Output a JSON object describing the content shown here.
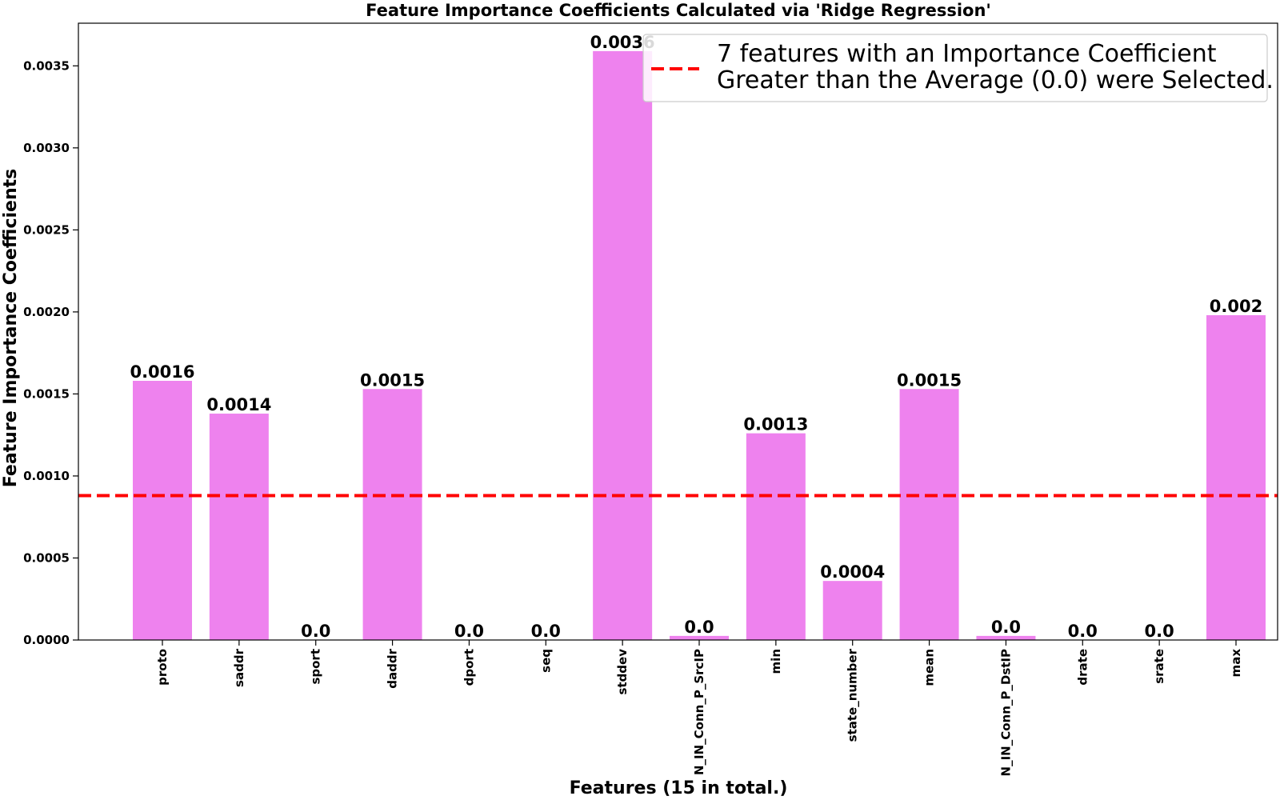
{
  "chart_data": {
    "type": "bar",
    "title": "Feature Importance Coefficients Calculated via 'Ridge Regression'",
    "xlabel": "Features (15 in total.)",
    "ylabel": "Feature Importance Coefficients",
    "categories": [
      "proto",
      "saddr",
      "sport",
      "daddr",
      "dport",
      "seq",
      "stddev",
      "N_IN_Conn_P_SrcIP",
      "min",
      "state_number",
      "mean",
      "N_IN_Conn_P_DstIP",
      "drate",
      "srate",
      "max"
    ],
    "values": [
      0.00158,
      0.00138,
      0.0,
      0.00153,
      0.0,
      0.0,
      0.00359,
      2.5e-05,
      0.00126,
      0.00036,
      0.00153,
      2.5e-05,
      0.0,
      0.0,
      0.00198
    ],
    "value_labels": [
      "0.0016",
      "0.0014",
      "0.0",
      "0.0015",
      "0.0",
      "0.0",
      "0.0036",
      "0.0",
      "0.0013",
      "0.0004",
      "0.0015",
      "0.0",
      "0.0",
      "0.0",
      "0.002"
    ],
    "ylim": [
      0,
      0.00376
    ],
    "yticks": [
      0,
      0.0005,
      0.001,
      0.0015,
      0.002,
      0.0025,
      0.003,
      0.0035
    ],
    "ytick_labels": [
      "0.0000",
      "0.0005",
      "0.0010",
      "0.0015",
      "0.0020",
      "0.0025",
      "0.0030",
      "0.0035"
    ],
    "threshold": {
      "value": 0.00088,
      "label_line1": "7 features with an Importance Coefficient",
      "label_line2": "Greater than the Average (0.0) were Selected.",
      "color": "#ff0000"
    },
    "bar_color": "#ee82ee",
    "legend_position": "top-right",
    "grid": false
  }
}
